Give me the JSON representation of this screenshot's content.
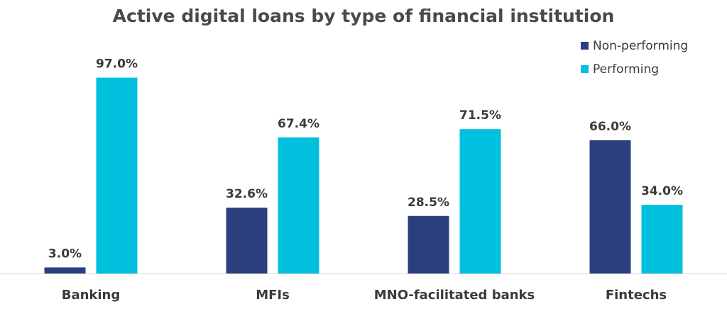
{
  "chart_data": {
    "type": "bar",
    "title": "Active digital loans by type of financial institution",
    "categories": [
      "Banking",
      "MFIs",
      "MNO-facilitated banks",
      "Fintechs"
    ],
    "series": [
      {
        "name": "Non-performing",
        "color": "#2b3f7e",
        "values": [
          3.0,
          32.6,
          28.5,
          66.0
        ],
        "labels": [
          "3.0%",
          "32.6%",
          "28.5%",
          "66.0%"
        ]
      },
      {
        "name": "Performing",
        "color": "#00c0de",
        "values": [
          97.0,
          67.4,
          71.5,
          34.0
        ],
        "labels": [
          "97.0%",
          "67.4%",
          "71.5%",
          "34.0%"
        ]
      }
    ],
    "ylim": [
      0,
      100
    ],
    "grid": false,
    "legend_position": "top-right",
    "axis_color": "#d9d9d9"
  }
}
